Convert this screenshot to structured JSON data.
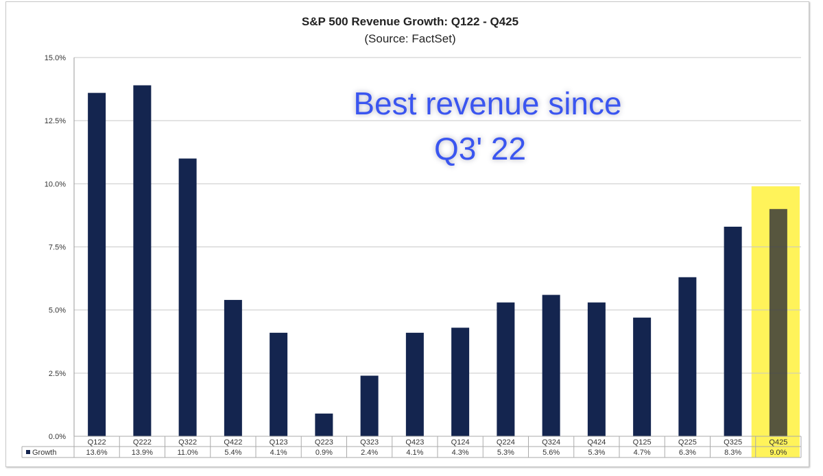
{
  "chart_data": {
    "type": "bar",
    "title": "S&P 500 Revenue Growth: Q122 - Q425",
    "subtitle": "(Source: FactSet)",
    "annotation": [
      "Best revenue since",
      "Q3' 22"
    ],
    "categories": [
      "Q122",
      "Q222",
      "Q322",
      "Q422",
      "Q123",
      "Q223",
      "Q323",
      "Q423",
      "Q124",
      "Q224",
      "Q324",
      "Q424",
      "Q125",
      "Q225",
      "Q325",
      "Q425"
    ],
    "series": [
      {
        "name": "Growth",
        "values": [
          13.6,
          13.9,
          11.0,
          5.4,
          4.1,
          0.9,
          2.4,
          4.1,
          4.3,
          5.3,
          5.6,
          5.3,
          4.7,
          6.3,
          8.3,
          9.0
        ]
      }
    ],
    "value_labels": [
      "13.6%",
      "13.9%",
      "11.0%",
      "5.4%",
      "4.1%",
      "0.9%",
      "2.4%",
      "4.1%",
      "4.3%",
      "5.3%",
      "5.6%",
      "5.3%",
      "4.7%",
      "6.3%",
      "8.3%",
      "9.0%"
    ],
    "yticks": [
      "0.0%",
      "2.5%",
      "5.0%",
      "7.5%",
      "10.0%",
      "12.5%",
      "15.0%"
    ],
    "ylim": [
      0,
      15
    ],
    "grid": true,
    "legend": "data-table",
    "highlight_category": "Q425",
    "colors": {
      "bar": "#14254f",
      "highlight": "#fff35a",
      "annotation": "#3a55f0",
      "grid": "#c8c8c8"
    }
  }
}
